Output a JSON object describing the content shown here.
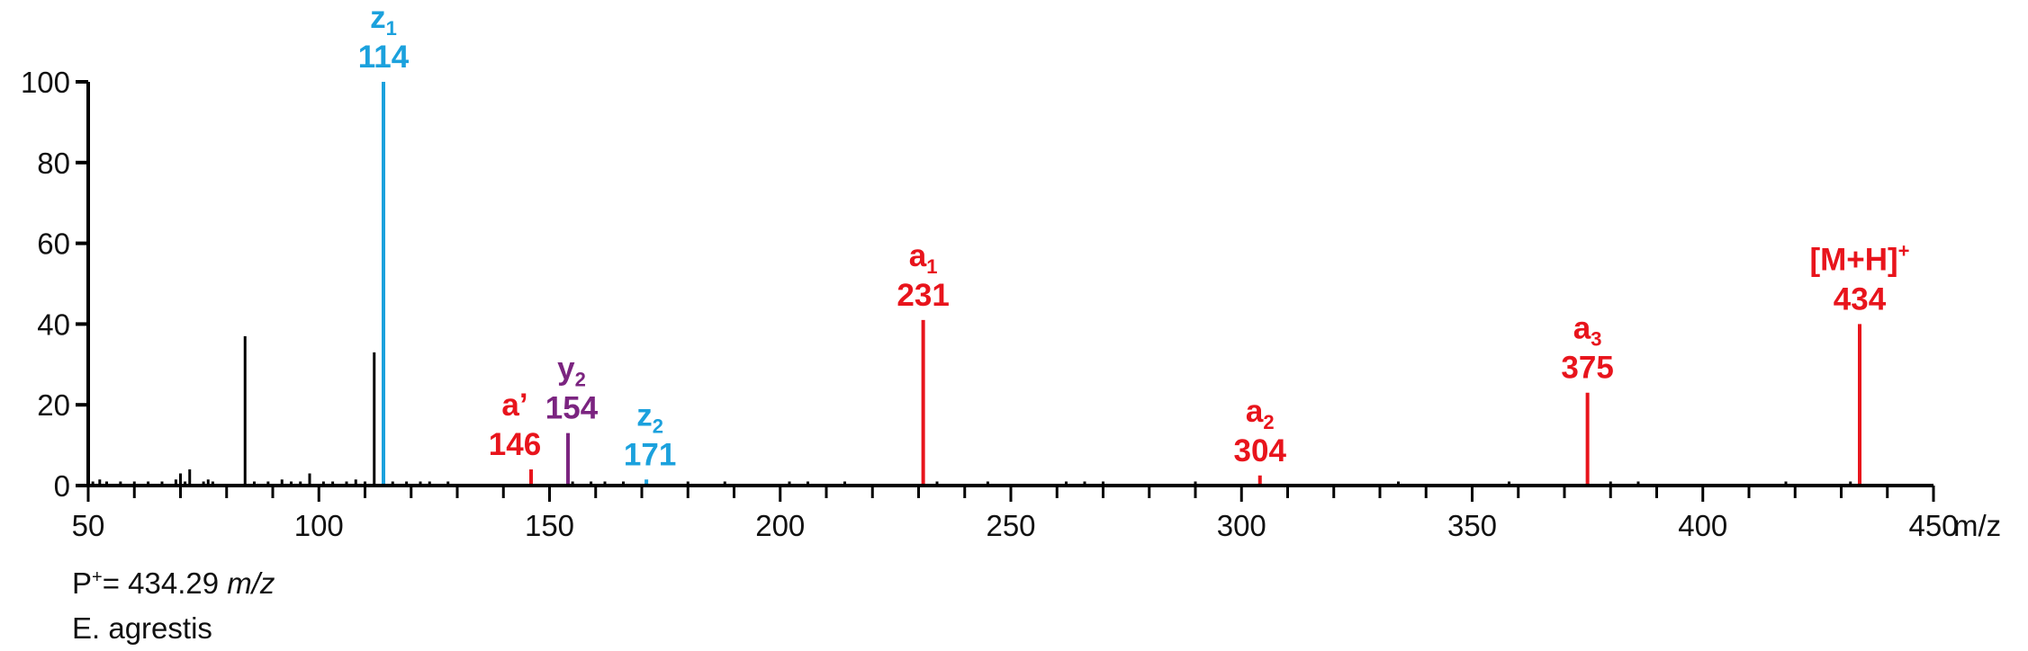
{
  "colors": {
    "axis": "#000000",
    "noise": "#000000",
    "a_ions": "#e8141c",
    "z_ions": "#1ba1dd",
    "y_ions": "#7b2480"
  },
  "footer": {
    "precursor_prefix": "P",
    "precursor_sup": "+",
    "precursor_eq": "= 434.29 ",
    "precursor_unit": "m/z",
    "species": "E. agrestis"
  },
  "chart_data": {
    "type": "bar",
    "xlabel": "m/z",
    "ylabel": "",
    "xlim": [
      50,
      450
    ],
    "ylim": [
      0,
      100
    ],
    "x_ticks": [
      "50",
      "100",
      "150",
      "200",
      "250",
      "300",
      "350",
      "400",
      "450"
    ],
    "y_ticks": [
      "0",
      "20",
      "40",
      "60",
      "80",
      "100"
    ],
    "series": [
      {
        "name": "",
        "color": "#000000",
        "points": [
          {
            "x": 51,
            "y": 1
          },
          {
            "x": 52.5,
            "y": 1.5
          },
          {
            "x": 54,
            "y": 1
          },
          {
            "x": 57,
            "y": 1
          },
          {
            "x": 60,
            "y": 1
          },
          {
            "x": 63,
            "y": 1
          },
          {
            "x": 66,
            "y": 1
          },
          {
            "x": 69,
            "y": 1.5
          },
          {
            "x": 70,
            "y": 3
          },
          {
            "x": 71,
            "y": 1
          },
          {
            "x": 72,
            "y": 4
          },
          {
            "x": 75,
            "y": 1
          },
          {
            "x": 76,
            "y": 1.5
          },
          {
            "x": 77,
            "y": 1
          },
          {
            "x": 84,
            "y": 37
          },
          {
            "x": 86,
            "y": 1
          },
          {
            "x": 89,
            "y": 1
          },
          {
            "x": 92,
            "y": 1.5
          },
          {
            "x": 94,
            "y": 1
          },
          {
            "x": 96,
            "y": 1
          },
          {
            "x": 98,
            "y": 3
          },
          {
            "x": 101,
            "y": 1
          },
          {
            "x": 103,
            "y": 1
          },
          {
            "x": 106,
            "y": 1
          },
          {
            "x": 108,
            "y": 1.5
          },
          {
            "x": 110,
            "y": 1
          },
          {
            "x": 112,
            "y": 33
          },
          {
            "x": 116,
            "y": 1
          },
          {
            "x": 119,
            "y": 1
          },
          {
            "x": 122,
            "y": 1
          },
          {
            "x": 124,
            "y": 1
          },
          {
            "x": 128,
            "y": 1
          },
          {
            "x": 155,
            "y": 1
          },
          {
            "x": 159,
            "y": 1
          },
          {
            "x": 162,
            "y": 1
          },
          {
            "x": 166,
            "y": 1
          },
          {
            "x": 180,
            "y": 1
          },
          {
            "x": 188,
            "y": 1
          },
          {
            "x": 202,
            "y": 1
          },
          {
            "x": 206,
            "y": 1
          },
          {
            "x": 214,
            "y": 1
          },
          {
            "x": 234,
            "y": 1
          },
          {
            "x": 245,
            "y": 1
          },
          {
            "x": 262,
            "y": 1
          },
          {
            "x": 266,
            "y": 1
          },
          {
            "x": 270,
            "y": 1
          },
          {
            "x": 290,
            "y": 1
          },
          {
            "x": 334,
            "y": 1
          },
          {
            "x": 358,
            "y": 1
          },
          {
            "x": 380,
            "y": 1
          },
          {
            "x": 386,
            "y": 1
          },
          {
            "x": 418,
            "y": 1
          },
          {
            "x": 432,
            "y": 1
          }
        ]
      },
      {
        "name": "",
        "color": "#1ba1dd",
        "points": [
          {
            "x": 114,
            "y": 100,
            "ion": "z",
            "sub": "1",
            "label": "114"
          },
          {
            "x": 171,
            "y": 1.5,
            "ion": "z",
            "sub": "2",
            "label": "171"
          }
        ]
      },
      {
        "name": "",
        "color": "#7b2480",
        "points": [
          {
            "x": 154,
            "y": 13,
            "ion": "y",
            "sub": "2",
            "label": "154"
          }
        ]
      },
      {
        "name": "",
        "color": "#e8141c",
        "points": [
          {
            "x": 146,
            "y": 4,
            "ion": "a’",
            "sub": "",
            "label": "146"
          },
          {
            "x": 231,
            "y": 41,
            "ion": "a",
            "sub": "1",
            "label": "231"
          },
          {
            "x": 304,
            "y": 2.5,
            "ion": "a",
            "sub": "2",
            "label": "304"
          },
          {
            "x": 375,
            "y": 23,
            "ion": "a",
            "sub": "3",
            "label": "375"
          },
          {
            "x": 434,
            "y": 40,
            "ion": "[M+H]",
            "sup": "+",
            "label": "434"
          }
        ]
      }
    ]
  }
}
